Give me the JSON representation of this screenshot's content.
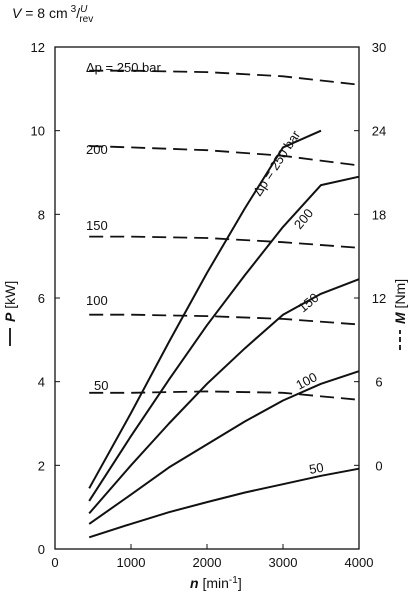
{
  "chart_data": {
    "type": "line",
    "header": {
      "var": "V",
      "eq": " = 8 cm",
      "sup": "3",
      "slash": "/",
      "frac_num": "U",
      "frac_den": "rev"
    },
    "xaxis": {
      "label_var": "n",
      "label_unit": " [min",
      "label_exp": "-1",
      "label_close": "]",
      "ticks": [
        "0",
        "1000",
        "2000",
        "3000",
        "4000"
      ],
      "tick_values": [
        0,
        1000,
        2000,
        3000,
        4000
      ],
      "range": [
        0,
        4000
      ]
    },
    "yaxis_left": {
      "legend_line": "solid",
      "label_var": "P",
      "label_unit": " [kW]",
      "ticks": [
        "0",
        "2",
        "4",
        "6",
        "8",
        "10",
        "12"
      ],
      "tick_values": [
        0,
        2,
        4,
        6,
        8,
        10,
        12
      ],
      "range": [
        0,
        12
      ]
    },
    "yaxis_right": {
      "legend_line": "dashed",
      "label_var": "M",
      "label_unit": " [Nm]",
      "ticks": [
        "0",
        "6",
        "12",
        "18",
        "24",
        "30"
      ],
      "tick_values": [
        0,
        6,
        12,
        18,
        24,
        30
      ],
      "range": [
        -6,
        30
      ]
    },
    "power_series": [
      {
        "name": "Δp = 250 bar",
        "x": [
          450,
          1000,
          1500,
          2000,
          2500,
          3000,
          3500
        ],
        "y": [
          1.45,
          3.25,
          4.95,
          6.6,
          8.15,
          9.6,
          10.0
        ]
      },
      {
        "name": "200",
        "x": [
          450,
          1000,
          1500,
          2000,
          2500,
          3000,
          3500,
          4000
        ],
        "y": [
          1.15,
          2.7,
          4.05,
          5.35,
          6.55,
          7.7,
          8.7,
          8.9
        ]
      },
      {
        "name": "150",
        "x": [
          450,
          1000,
          1500,
          2000,
          2500,
          3000,
          3500,
          4000
        ],
        "y": [
          0.85,
          2.0,
          3.0,
          3.95,
          4.8,
          5.6,
          6.1,
          6.45
        ]
      },
      {
        "name": "100",
        "x": [
          450,
          1000,
          1500,
          2000,
          2500,
          3000,
          3500,
          4000
        ],
        "y": [
          0.6,
          1.3,
          1.95,
          2.5,
          3.05,
          3.55,
          3.95,
          4.25
        ]
      },
      {
        "name": "50",
        "x": [
          450,
          1000,
          1500,
          2000,
          2500,
          3000,
          3500,
          4000
        ],
        "y": [
          0.28,
          0.6,
          0.88,
          1.12,
          1.35,
          1.55,
          1.75,
          1.92
        ]
      }
    ],
    "torque_series": [
      {
        "name": "Δp = 250 bar",
        "x": [
          450,
          1000,
          2000,
          3000,
          4000
        ],
        "y": [
          28.3,
          28.3,
          28.2,
          27.9,
          27.3
        ]
      },
      {
        "name": "200",
        "x": [
          450,
          1000,
          2000,
          3000,
          4000
        ],
        "y": [
          22.9,
          22.8,
          22.6,
          22.2,
          21.5
        ]
      },
      {
        "name": "150",
        "x": [
          450,
          1000,
          2000,
          3000,
          4000
        ],
        "y": [
          16.4,
          16.4,
          16.3,
          16.0,
          15.6
        ]
      },
      {
        "name": "100",
        "x": [
          450,
          1000,
          2000,
          3000,
          4000
        ],
        "y": [
          10.8,
          10.8,
          10.7,
          10.5,
          10.1
        ]
      },
      {
        "name": "50",
        "x": [
          450,
          1000,
          2000,
          3000,
          4000
        ],
        "y": [
          5.2,
          5.2,
          5.3,
          5.2,
          4.7
        ]
      }
    ],
    "power_labels": [
      "Δp = 250 bar",
      "200",
      "150",
      "100",
      "50"
    ],
    "torque_labels": [
      "Δp = 250 bar",
      "200",
      "150",
      "100",
      "50"
    ],
    "grid": false
  }
}
